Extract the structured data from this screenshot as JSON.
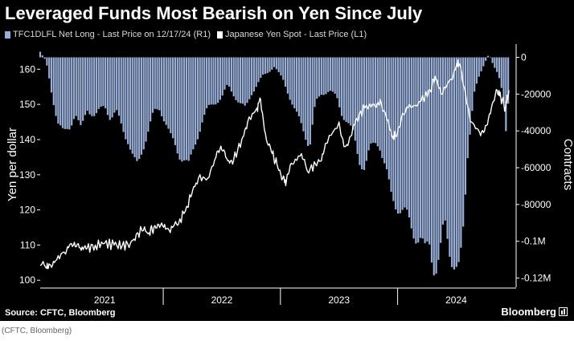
{
  "title": "Leveraged Funds Most Bearish on Yen Since July",
  "source": "Source: CFTC, Bloomberg",
  "brand": "Bloomberg",
  "caption": "(CFTC, Bloomberg)",
  "colors": {
    "background": "#000000",
    "bars": "#98aed6",
    "line": "#ffffff",
    "grid": "#4a4a4a",
    "text": "#ffffff"
  },
  "chart_data": {
    "type": "bar+line",
    "legend": [
      {
        "label": "TFC1DLFL Net Long - Last Price on 12/17/24 (R1)",
        "color": "#98aed6"
      },
      {
        "label": "Japanese Yen Spot - Last Price (L1)",
        "color": "#ffffff"
      }
    ],
    "legend_position": "top-left",
    "grid": false,
    "y_left": {
      "label": "Yen per dollar",
      "min": 98,
      "max": 166,
      "ticks": [
        "100",
        "110",
        "120",
        "130",
        "140",
        "150",
        "160"
      ]
    },
    "y_right": {
      "label": "Contracts",
      "min": -125000,
      "max": 5000,
      "ticks": [
        {
          "v": 0,
          "t": "0"
        },
        {
          "v": -20000,
          "t": "-20000"
        },
        {
          "v": -40000,
          "t": "-40000"
        },
        {
          "v": -60000,
          "t": "-60000"
        },
        {
          "v": -80000,
          "t": "-80000"
        },
        {
          "v": -100000,
          "t": "-0.1M"
        },
        {
          "v": -120000,
          "t": "-0.12M"
        }
      ]
    },
    "x": {
      "min": 2020.95,
      "max": 2024.97,
      "labels": [
        "2021",
        "2022",
        "2023",
        "2024"
      ],
      "label_positions": [
        2021.5,
        2022.5,
        2023.5,
        2024.5
      ],
      "dividers": [
        2022.0,
        2023.0,
        2024.0
      ]
    },
    "series": [
      {
        "name": "Japanese Yen Spot - Last Price (L1)",
        "kind": "line",
        "axis": "left",
        "points": [
          [
            2020.95,
            104.2
          ],
          [
            2021.0,
            103.5
          ],
          [
            2021.03,
            104.5
          ],
          [
            2021.08,
            105.5
          ],
          [
            2021.15,
            108.0
          ],
          [
            2021.2,
            110.0
          ],
          [
            2021.25,
            109.5
          ],
          [
            2021.3,
            108.5
          ],
          [
            2021.35,
            109.0
          ],
          [
            2021.42,
            110.0
          ],
          [
            2021.5,
            110.5
          ],
          [
            2021.58,
            110.0
          ],
          [
            2021.65,
            109.8
          ],
          [
            2021.72,
            110.5
          ],
          [
            2021.78,
            113.5
          ],
          [
            2021.82,
            114.0
          ],
          [
            2021.88,
            113.5
          ],
          [
            2021.92,
            115.0
          ],
          [
            2021.97,
            115.0
          ],
          [
            2022.02,
            114.5
          ],
          [
            2022.08,
            115.0
          ],
          [
            2022.13,
            116.0
          ],
          [
            2022.2,
            121.0
          ],
          [
            2022.24,
            124.0
          ],
          [
            2022.3,
            129.0
          ],
          [
            2022.38,
            129.0
          ],
          [
            2022.45,
            135.0
          ],
          [
            2022.5,
            137.0
          ],
          [
            2022.55,
            134.0
          ],
          [
            2022.6,
            134.0
          ],
          [
            2022.67,
            140.0
          ],
          [
            2022.72,
            145.0
          ],
          [
            2022.8,
            149.0
          ],
          [
            2022.83,
            151.5
          ],
          [
            2022.88,
            140.0
          ],
          [
            2022.93,
            136.0
          ],
          [
            2022.97,
            133.0
          ],
          [
            2023.02,
            129.0
          ],
          [
            2023.05,
            128.0
          ],
          [
            2023.1,
            133.0
          ],
          [
            2023.18,
            136.0
          ],
          [
            2023.23,
            131.0
          ],
          [
            2023.3,
            133.0
          ],
          [
            2023.35,
            134.0
          ],
          [
            2023.4,
            139.0
          ],
          [
            2023.5,
            145.0
          ],
          [
            2023.55,
            138.0
          ],
          [
            2023.6,
            141.0
          ],
          [
            2023.65,
            146.0
          ],
          [
            2023.72,
            149.0
          ],
          [
            2023.8,
            150.0
          ],
          [
            2023.85,
            151.5
          ],
          [
            2023.9,
            147.0
          ],
          [
            2023.95,
            141.0
          ],
          [
            2023.98,
            141.0
          ],
          [
            2024.03,
            146.0
          ],
          [
            2024.1,
            150.0
          ],
          [
            2024.2,
            151.0
          ],
          [
            2024.28,
            154.0
          ],
          [
            2024.32,
            158.0
          ],
          [
            2024.37,
            153.0
          ],
          [
            2024.45,
            157.0
          ],
          [
            2024.5,
            161.0
          ],
          [
            2024.53,
            161.5
          ],
          [
            2024.58,
            153.0
          ],
          [
            2024.63,
            145.0
          ],
          [
            2024.7,
            142.0
          ],
          [
            2024.75,
            144.0
          ],
          [
            2024.8,
            149.0
          ],
          [
            2024.85,
            154.0
          ],
          [
            2024.88,
            152.0
          ],
          [
            2024.92,
            149.0
          ],
          [
            2024.95,
            154.0
          ]
        ]
      },
      {
        "name": "TFC1DLFL Net Long - Last Price on 12/17/24 (R1)",
        "kind": "bar",
        "axis": "right",
        "step": 0.0192,
        "points": [
          [
            2020.95,
            3000
          ],
          [
            2021.0,
            -2000
          ],
          [
            2021.05,
            -20000
          ],
          [
            2021.1,
            -35000
          ],
          [
            2021.15,
            -42000
          ],
          [
            2021.2,
            -38000
          ],
          [
            2021.25,
            -30000
          ],
          [
            2021.3,
            -40000
          ],
          [
            2021.35,
            -28000
          ],
          [
            2021.42,
            -32000
          ],
          [
            2021.5,
            -26000
          ],
          [
            2021.55,
            -33000
          ],
          [
            2021.6,
            -30000
          ],
          [
            2021.65,
            -38000
          ],
          [
            2021.7,
            -45000
          ],
          [
            2021.75,
            -57000
          ],
          [
            2021.78,
            -60000
          ],
          [
            2021.82,
            -50000
          ],
          [
            2021.87,
            -40000
          ],
          [
            2021.92,
            -30000
          ],
          [
            2021.97,
            -28000
          ],
          [
            2022.02,
            -35000
          ],
          [
            2022.07,
            -45000
          ],
          [
            2022.13,
            -52000
          ],
          [
            2022.18,
            -55000
          ],
          [
            2022.22,
            -60000
          ],
          [
            2022.28,
            -45000
          ],
          [
            2022.33,
            -35000
          ],
          [
            2022.38,
            -28000
          ],
          [
            2022.43,
            -25000
          ],
          [
            2022.5,
            -22000
          ],
          [
            2022.55,
            -15000
          ],
          [
            2022.6,
            -20000
          ],
          [
            2022.65,
            -25000
          ],
          [
            2022.7,
            -28000
          ],
          [
            2022.75,
            -20000
          ],
          [
            2022.8,
            -15000
          ],
          [
            2022.85,
            -10000
          ],
          [
            2022.9,
            -8000
          ],
          [
            2022.95,
            -5000
          ],
          [
            2022.98,
            -8000
          ],
          [
            2023.02,
            -12000
          ],
          [
            2023.07,
            -20000
          ],
          [
            2023.13,
            -30000
          ],
          [
            2023.2,
            -40000
          ],
          [
            2023.25,
            -48000
          ],
          [
            2023.3,
            -25000
          ],
          [
            2023.35,
            -20000
          ],
          [
            2023.42,
            -18000
          ],
          [
            2023.48,
            -22000
          ],
          [
            2023.52,
            -30000
          ],
          [
            2023.57,
            -35000
          ],
          [
            2023.62,
            -42000
          ],
          [
            2023.67,
            -55000
          ],
          [
            2023.72,
            -60000
          ],
          [
            2023.77,
            -50000
          ],
          [
            2023.82,
            -45000
          ],
          [
            2023.85,
            -48000
          ],
          [
            2023.9,
            -62000
          ],
          [
            2023.94,
            -75000
          ],
          [
            2024.0,
            -80000
          ],
          [
            2024.05,
            -85000
          ],
          [
            2024.1,
            -90000
          ],
          [
            2024.15,
            -95000
          ],
          [
            2024.2,
            -100000
          ],
          [
            2024.23,
            -108000
          ],
          [
            2024.27,
            -100000
          ],
          [
            2024.32,
            -115000
          ],
          [
            2024.36,
            -110000
          ],
          [
            2024.4,
            -90000
          ],
          [
            2024.45,
            -105000
          ],
          [
            2024.5,
            -115000
          ],
          [
            2024.53,
            -118000
          ],
          [
            2024.56,
            -95000
          ],
          [
            2024.6,
            -50000
          ],
          [
            2024.65,
            -20000
          ],
          [
            2024.7,
            -10000
          ],
          [
            2024.75,
            -2000
          ],
          [
            2024.78,
            2000
          ],
          [
            2024.82,
            -5000
          ],
          [
            2024.86,
            -10000
          ],
          [
            2024.9,
            -20000
          ],
          [
            2024.93,
            -42000
          ],
          [
            2024.96,
            -3000
          ]
        ]
      }
    ]
  }
}
